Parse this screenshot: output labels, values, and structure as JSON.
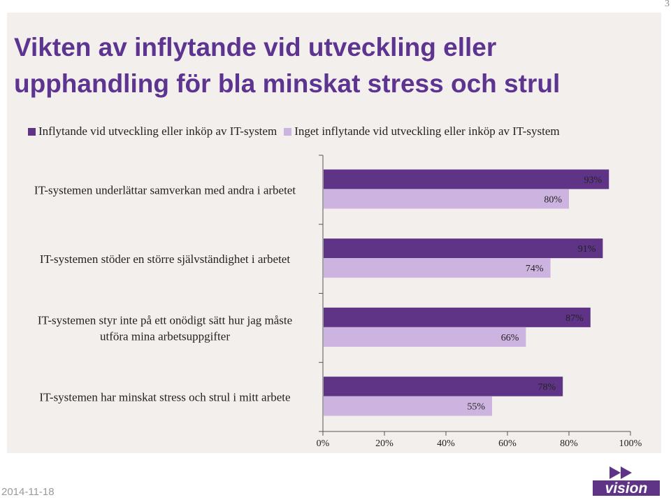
{
  "page_number": "3",
  "title": "Vikten av inflytande vid utveckling eller upphandling för bla minskat stress och strul",
  "date": "2014-11-18",
  "logo_text": "vision",
  "colors": {
    "series1": "#5f3486",
    "series2": "#cdb4e0",
    "title": "#5d3591",
    "panel": "#f3efec"
  },
  "chart_data": {
    "type": "bar",
    "orientation": "horizontal",
    "title": "",
    "xlabel": "",
    "ylabel": "",
    "xlim": [
      0,
      100
    ],
    "ticks": [
      "0%",
      "20%",
      "40%",
      "60%",
      "80%",
      "100%"
    ],
    "categories": [
      "IT-systemen underlättar samverkan med andra i arbetet",
      "IT-systemen stöder en större självständighet i arbetet",
      "IT-systemen styr inte på ett onödigt sätt hur jag måste utföra mina arbetsuppgifter",
      "IT-systemen har minskat stress och strul i mitt arbete"
    ],
    "category_lines": [
      [
        "IT-systemen underlättar samverkan med andra i arbetet"
      ],
      [
        "IT-systemen stöder en större självständighet i arbetet"
      ],
      [
        "IT-systemen styr inte på ett onödigt sätt hur jag måste",
        "utföra mina arbetsuppgifter"
      ],
      [
        "IT-systemen har minskat stress och strul i mitt arbete"
      ]
    ],
    "series": [
      {
        "name": "Inflytande vid utveckling eller inköp av IT-system",
        "values": [
          93,
          91,
          87,
          78
        ],
        "labels": [
          "93%",
          "91%",
          "87%",
          "78%"
        ]
      },
      {
        "name": "Inget inflytande vid utveckling eller inköp av IT-system",
        "values": [
          80,
          74,
          66,
          55
        ],
        "labels": [
          "80%",
          "74%",
          "66%",
          "55%"
        ]
      }
    ],
    "legend_position": "top",
    "grid": false
  }
}
